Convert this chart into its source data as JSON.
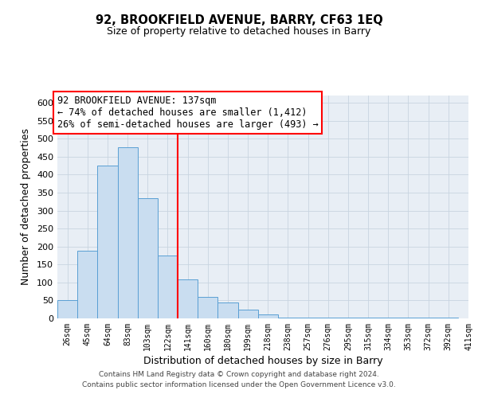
{
  "title": "92, BROOKFIELD AVENUE, BARRY, CF63 1EQ",
  "subtitle": "Size of property relative to detached houses in Barry",
  "xlabel": "Distribution of detached houses by size in Barry",
  "ylabel": "Number of detached properties",
  "bin_labels": [
    "26sqm",
    "45sqm",
    "64sqm",
    "83sqm",
    "103sqm",
    "122sqm",
    "141sqm",
    "160sqm",
    "180sqm",
    "199sqm",
    "218sqm",
    "238sqm",
    "257sqm",
    "276sqm",
    "295sqm",
    "315sqm",
    "334sqm",
    "353sqm",
    "372sqm",
    "392sqm",
    "411sqm"
  ],
  "bar_values": [
    50,
    188,
    425,
    475,
    335,
    175,
    108,
    60,
    45,
    25,
    12,
    3,
    3,
    3,
    2,
    3,
    2,
    3,
    3,
    3
  ],
  "bar_color": "#c9ddf0",
  "bar_edge_color": "#5a9fd4",
  "vline_x_index": 5.5,
  "vline_color": "red",
  "annotation_title": "92 BROOKFIELD AVENUE: 137sqm",
  "annotation_line1": "← 74% of detached houses are smaller (1,412)",
  "annotation_line2": "26% of semi-detached houses are larger (493) →",
  "annotation_box_color": "white",
  "annotation_box_edge": "red",
  "ylim": [
    0,
    620
  ],
  "yticks": [
    0,
    50,
    100,
    150,
    200,
    250,
    300,
    350,
    400,
    450,
    500,
    550,
    600
  ],
  "grid_color": "#c8d4e0",
  "background_color": "#e8eef5",
  "footer_line1": "Contains HM Land Registry data © Crown copyright and database right 2024.",
  "footer_line2": "Contains public sector information licensed under the Open Government Licence v3.0."
}
